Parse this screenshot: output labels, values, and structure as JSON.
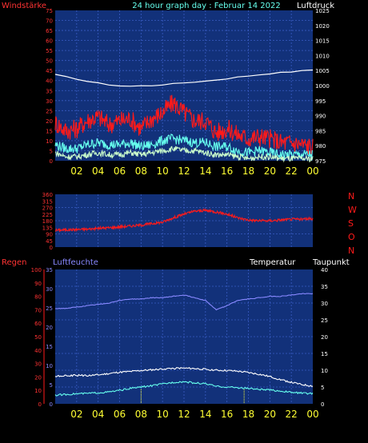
{
  "header": {
    "left_label": "Windstärke",
    "title": "24 hour graph day : Februar 14 2022",
    "right_label": "Luftdruck"
  },
  "colors": {
    "panel": "#12317a",
    "grid": "#3a5cc4",
    "red": "#ff1a1a",
    "yellow": "#ffff33",
    "white": "#ffffff",
    "cyan": "#66ffee",
    "lavender": "#8888ff",
    "lightgreen": "#ccffcc",
    "ylabel_left": "#ff3333"
  },
  "x_ticks": [
    "02",
    "04",
    "06",
    "08",
    "10",
    "12",
    "14",
    "16",
    "18",
    "20",
    "22",
    "00"
  ],
  "chart_data": [
    {
      "type": "line",
      "panel": "wind",
      "title": "24 hour graph day : Februar 14 2022",
      "ylabel_left": "Windstärke",
      "ylabel_right": "Luftdruck",
      "y_left_ticks": [
        "75",
        "70",
        "65",
        "60",
        "55",
        "50",
        "45",
        "40",
        "35",
        "30",
        "25",
        "20",
        "15",
        "10",
        "5",
        "0"
      ],
      "y_left_range": [
        0,
        75
      ],
      "y_right_ticks": [
        "1025",
        "1020",
        "1015",
        "1010",
        "1005",
        "1000",
        "995",
        "990",
        "985",
        "980",
        "975"
      ],
      "y_right_range": [
        975,
        1025
      ],
      "x_hours": [
        0,
        1,
        2,
        3,
        4,
        5,
        6,
        7,
        8,
        9,
        10,
        11,
        12,
        13,
        14,
        15,
        16,
        17,
        18,
        19,
        20,
        21,
        22,
        23,
        24
      ],
      "series": [
        {
          "key": "pressure",
          "axis": "right",
          "color": "white",
          "values": [
            1003.6,
            1002.9,
            1002.2,
            1001.4,
            1000.8,
            1000.3,
            999.9,
            999.8,
            999.9,
            1000.0,
            1000.3,
            1000.6,
            1000.9,
            1001.2,
            1001.5,
            1001.9,
            1002.3,
            1002.8,
            1003.2,
            1003.6,
            1004.0,
            1004.3,
            1004.6,
            1004.9,
            1005.2
          ]
        },
        {
          "key": "gusts",
          "axis": "left",
          "color": "red",
          "values": [
            19,
            15,
            16,
            20,
            22,
            18,
            20,
            21,
            16,
            21,
            24,
            29,
            24,
            20,
            20,
            14,
            16,
            13,
            11,
            12,
            11,
            9,
            9,
            8,
            7
          ]
        },
        {
          "key": "wind_mean",
          "axis": "left",
          "color": "cyan",
          "values": [
            8,
            6,
            6,
            8,
            9,
            8,
            8,
            9,
            7,
            8,
            10,
            11,
            10,
            9,
            9,
            7,
            7,
            5,
            4,
            5,
            4,
            3,
            3,
            3,
            3
          ]
        },
        {
          "key": "wind_min",
          "axis": "left",
          "color": "lightgreen",
          "values": [
            4,
            2,
            2,
            3,
            4,
            3,
            3,
            4,
            3,
            4,
            5,
            6,
            5,
            5,
            4,
            3,
            3,
            2,
            1,
            2,
            2,
            1,
            1,
            1,
            1
          ]
        }
      ]
    },
    {
      "type": "line",
      "panel": "direction",
      "y_left_ticks": [
        "360",
        "315",
        "270",
        "225",
        "180",
        "135",
        "90",
        "45",
        "0"
      ],
      "y_left_range": [
        0,
        360
      ],
      "compass_labels": [
        "N",
        "W",
        "S",
        "O",
        "N"
      ],
      "x_hours": [
        0,
        1,
        2,
        3,
        4,
        5,
        6,
        7,
        8,
        9,
        10,
        11,
        12,
        13,
        14,
        15,
        16,
        17,
        18,
        19,
        20,
        21,
        22,
        23,
        24
      ],
      "series": [
        {
          "key": "direction",
          "color": "red",
          "values": [
            115,
            118,
            120,
            122,
            128,
            132,
            138,
            144,
            150,
            160,
            170,
            200,
            225,
            245,
            250,
            240,
            225,
            200,
            185,
            180,
            180,
            185,
            190,
            190,
            195
          ]
        }
      ]
    },
    {
      "type": "line",
      "panel": "temperature",
      "ylabel_left": "Regen",
      "ylabel_left2": "Luftfeuchte",
      "ylabel_right": "Temperatur",
      "ylabel_right2": "Taupunkt",
      "y_left_ticks": [
        "100",
        "90",
        "80",
        "70",
        "60",
        "50",
        "40",
        "30",
        "20",
        "10",
        "0"
      ],
      "y_left_range": [
        0,
        100
      ],
      "y_left2_ticks": [
        "35",
        "30",
        "25",
        "20",
        "15",
        "10",
        "5",
        "0"
      ],
      "y_left2_range": [
        0,
        35
      ],
      "y_right_ticks": [
        "40",
        "35",
        "30",
        "25",
        "20",
        "15",
        "10",
        "5",
        "0"
      ],
      "y_right_range": [
        0,
        40
      ],
      "x_hours": [
        0,
        1,
        2,
        3,
        4,
        5,
        6,
        7,
        8,
        9,
        10,
        11,
        12,
        13,
        14,
        15,
        16,
        17,
        18,
        19,
        20,
        21,
        22,
        23,
        24
      ],
      "series": [
        {
          "key": "humidity",
          "axis": "left",
          "color": "lavender",
          "values": [
            71,
            71,
            72,
            73,
            74,
            75,
            77,
            78,
            78,
            79,
            79,
            80,
            81,
            79,
            77,
            70,
            73,
            77,
            78,
            79,
            80,
            80,
            81,
            82,
            82
          ]
        },
        {
          "key": "temperature",
          "axis": "right",
          "color": "white",
          "values": [
            8.2,
            8.3,
            8.5,
            8.4,
            8.6,
            9.0,
            9.4,
            9.6,
            9.9,
            10.1,
            10.4,
            10.6,
            10.6,
            10.5,
            10.3,
            10.0,
            9.9,
            9.7,
            9.3,
            8.8,
            8.1,
            7.2,
            6.4,
            5.7,
            5.3
          ]
        },
        {
          "key": "dewpoint",
          "axis": "right",
          "color": "cyan",
          "values": [
            2.6,
            2.8,
            3.0,
            3.1,
            3.3,
            3.5,
            4.0,
            4.6,
            5.0,
            5.4,
            5.9,
            6.4,
            6.6,
            6.2,
            6.0,
            5.2,
            5.0,
            4.8,
            4.6,
            4.3,
            4.1,
            3.8,
            3.4,
            3.2,
            3.0
          ]
        }
      ],
      "rain_markers_hours": [
        8,
        17.6
      ]
    }
  ]
}
